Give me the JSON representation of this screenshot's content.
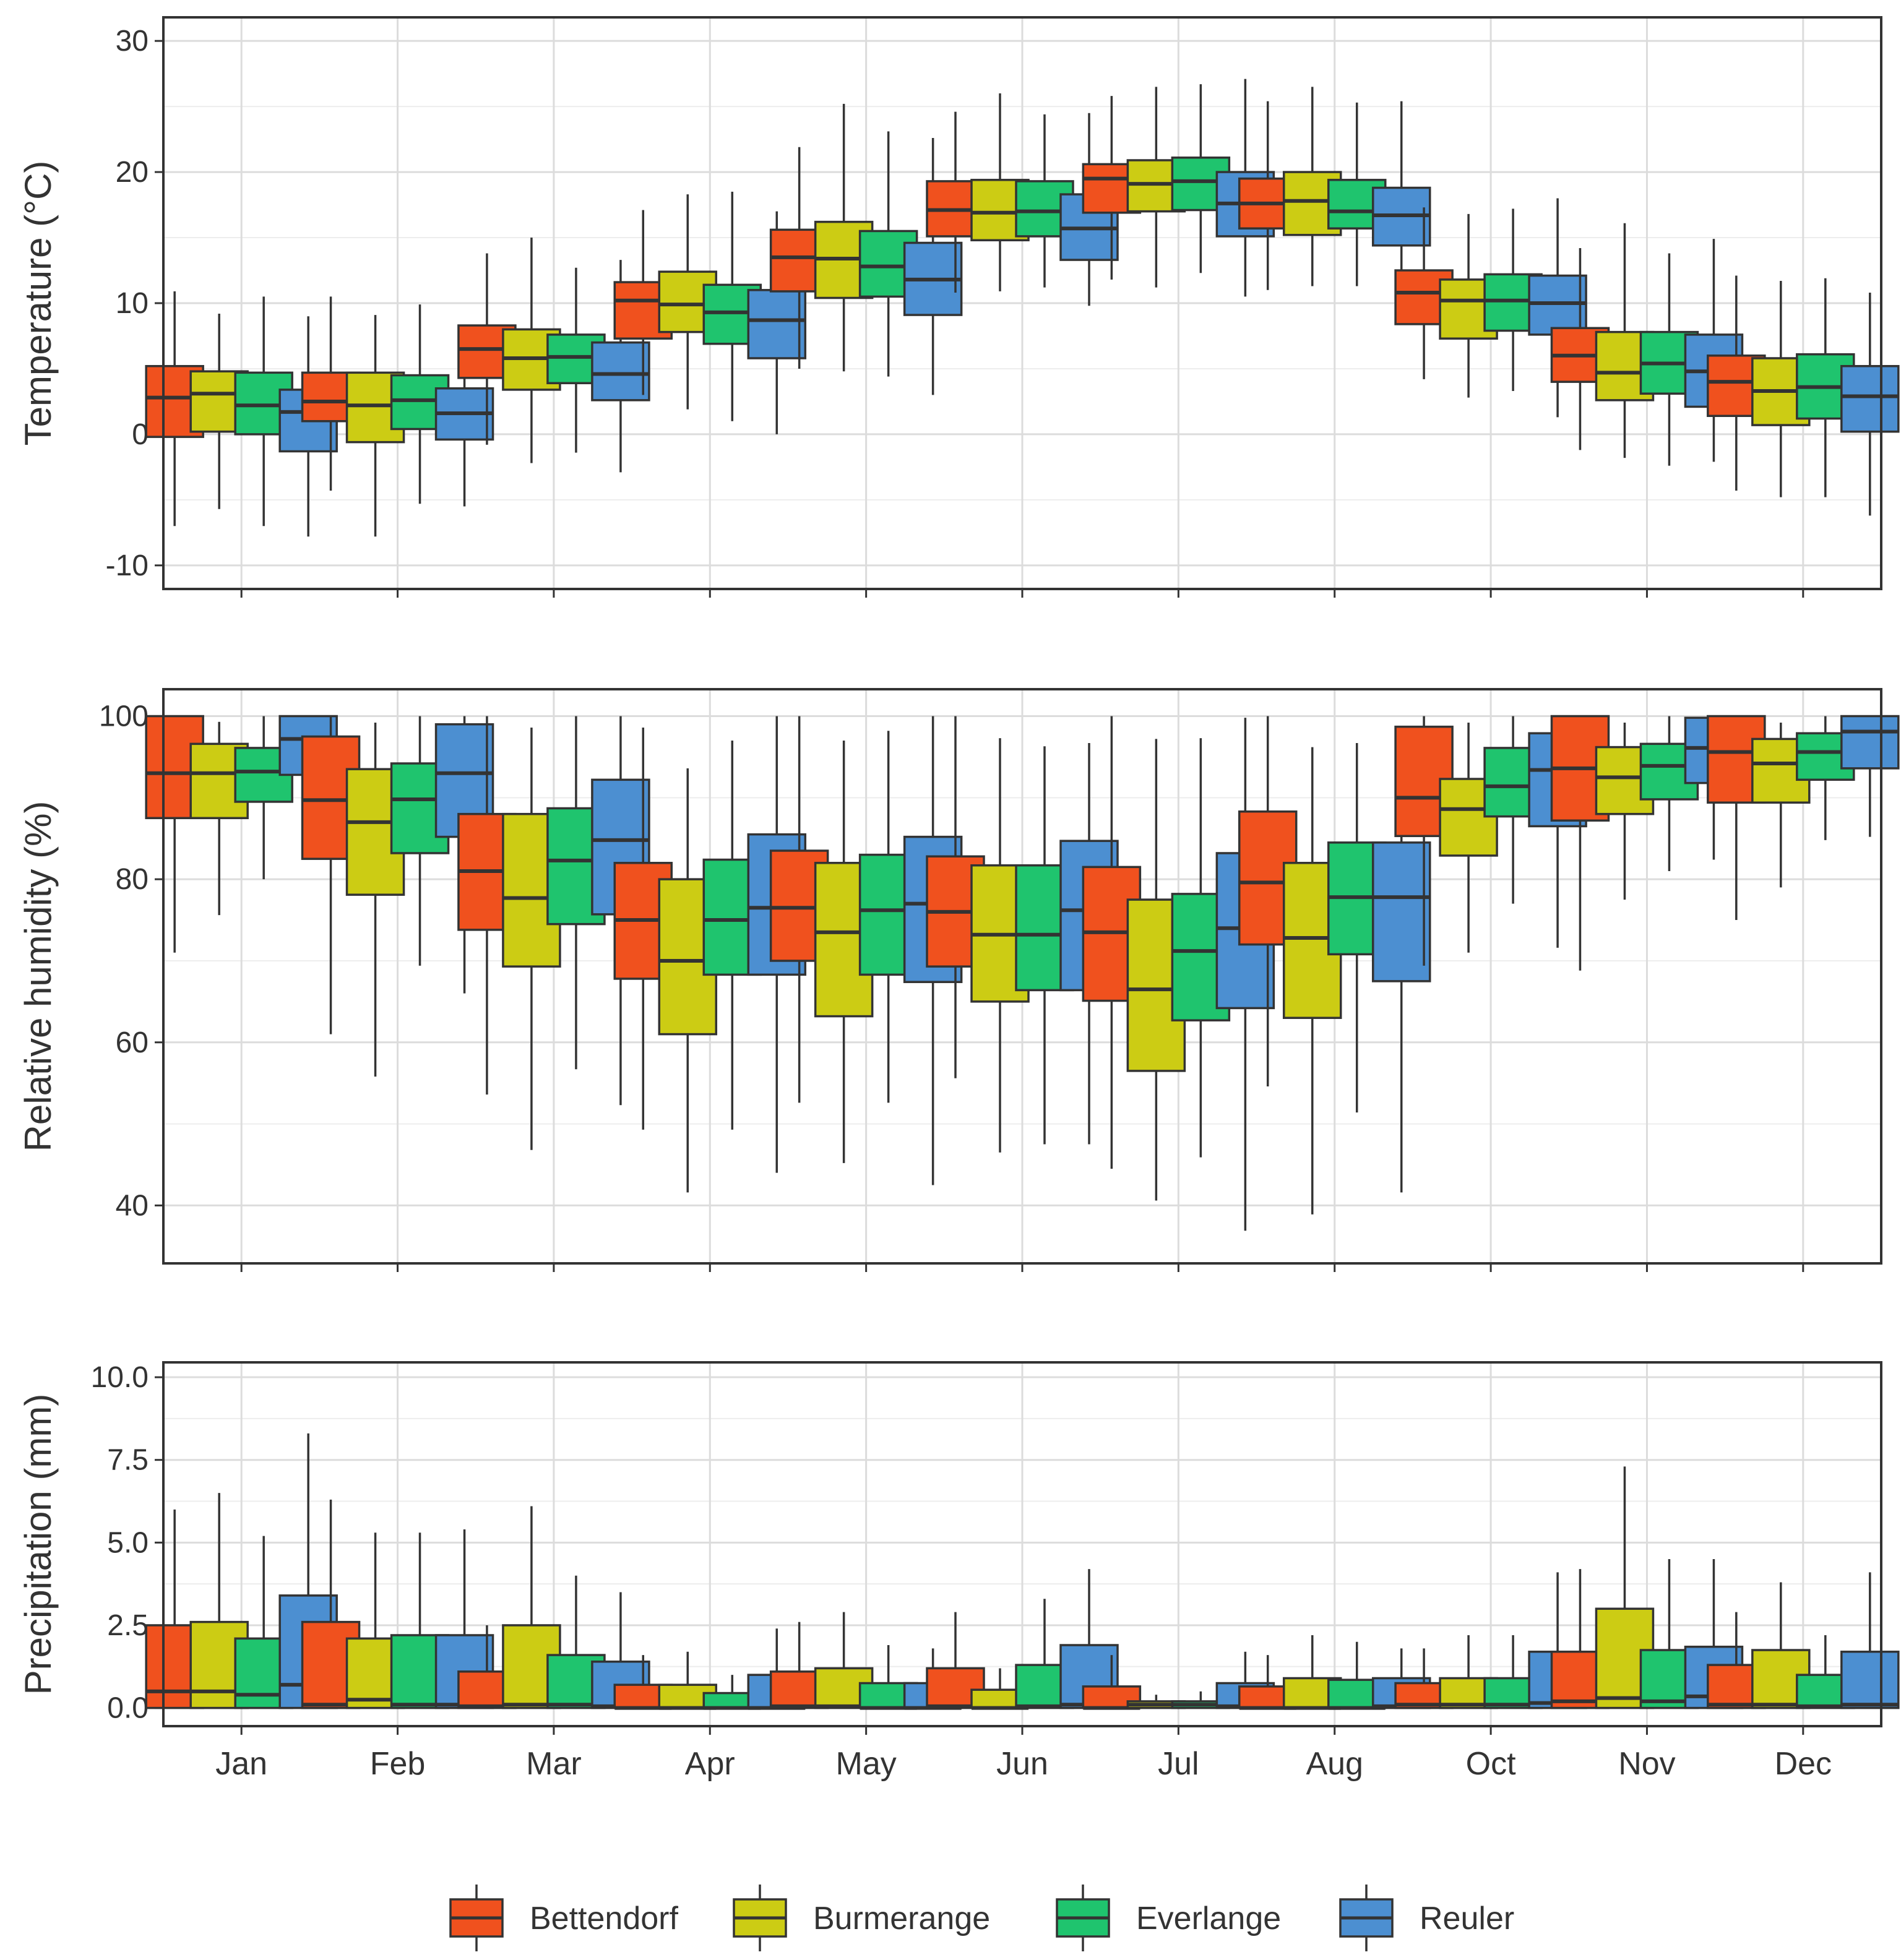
{
  "chart_data": {
    "type": "boxplot",
    "categories": [
      "Jan",
      "Feb",
      "Mar",
      "Apr",
      "May",
      "Jun",
      "Jul",
      "Aug",
      "Oct",
      "Nov",
      "Dec"
    ],
    "series": [
      {
        "name": "Bettendorf",
        "color": "#F0511E"
      },
      {
        "name": "Burmerange",
        "color": "#CCCC14"
      },
      {
        "name": "Everlange",
        "color": "#1FC46E"
      },
      {
        "name": "Reuler",
        "color": "#4C8FD1"
      }
    ],
    "legend_position": "bottom",
    "grid": true,
    "panels": [
      {
        "ylabel": "Temperature (°C)",
        "ylim": [
          -11.8,
          31.8
        ],
        "yticks": [
          -10,
          0,
          10,
          20,
          30
        ],
        "tick_labels": [
          "-10",
          "0",
          "10",
          "20",
          "30"
        ],
        "boxes": [
          [
            [
              -7,
              -0.2,
              2.8,
              5.2,
              10.9
            ],
            [
              -5.7,
              0.2,
              3.1,
              4.8,
              9.2
            ],
            [
              -7,
              0,
              2.2,
              4.7,
              10.5
            ],
            [
              -7.8,
              -1.3,
              1.7,
              3.4,
              9
            ]
          ],
          [
            [
              -4.3,
              1,
              2.5,
              4.7,
              10.5
            ],
            [
              -7.8,
              -0.6,
              2.2,
              4.7,
              9.1
            ],
            [
              -5.3,
              0.4,
              2.6,
              4.5,
              9.9
            ],
            [
              -5.5,
              -0.4,
              1.6,
              3.5,
              8.3
            ]
          ],
          [
            [
              -0.8,
              4.3,
              6.5,
              8.3,
              13.8
            ],
            [
              -2.2,
              3.4,
              5.8,
              8,
              15
            ],
            [
              -1.4,
              3.9,
              5.9,
              7.6,
              12.7
            ],
            [
              -2.9,
              2.6,
              4.6,
              7,
              13.3
            ]
          ],
          [
            [
              3,
              7.3,
              10.2,
              11.6,
              17.1
            ],
            [
              1.9,
              7.8,
              9.9,
              12.4,
              18.3
            ],
            [
              1,
              6.9,
              9.3,
              11.4,
              18.5
            ],
            [
              0,
              5.8,
              8.7,
              11,
              17
            ]
          ],
          [
            [
              5,
              10.9,
              13.5,
              15.6,
              21.9
            ],
            [
              4.8,
              10.4,
              13.4,
              16.2,
              25.2
            ],
            [
              4.4,
              10.5,
              12.8,
              15.5,
              23.1
            ],
            [
              3,
              9.1,
              11.8,
              14.6,
              22.6
            ]
          ],
          [
            [
              10.8,
              15.1,
              17.1,
              19.3,
              24.6
            ],
            [
              10.9,
              14.8,
              16.9,
              19.4,
              26
            ],
            [
              11.2,
              15.1,
              17,
              19.3,
              24.4
            ],
            [
              9.8,
              13.3,
              15.7,
              18.3,
              24.5
            ]
          ],
          [
            [
              11.8,
              16.9,
              19.5,
              20.6,
              25.8
            ],
            [
              11.2,
              17,
              19.1,
              20.9,
              26.5
            ],
            [
              12.3,
              17.1,
              19.3,
              21.1,
              26.7
            ],
            [
              10.5,
              15.1,
              17.6,
              20,
              27.1
            ]
          ],
          [
            [
              11,
              15.7,
              17.6,
              19.5,
              25.4
            ],
            [
              11.3,
              15.2,
              17.8,
              20,
              26.5
            ],
            [
              11.3,
              15.7,
              17,
              19.4,
              25.3
            ],
            [
              10,
              14.4,
              16.7,
              18.8,
              25.4
            ]
          ],
          [
            [
              4.2,
              8.4,
              10.8,
              12.5,
              17.3
            ],
            [
              2.8,
              7.3,
              10.2,
              11.8,
              16.8
            ],
            [
              3.3,
              7.9,
              10.2,
              12.2,
              17.2
            ],
            [
              1.3,
              7.6,
              10,
              12.1,
              18
            ]
          ],
          [
            [
              -1.2,
              4,
              6,
              8.1,
              14.2
            ],
            [
              -1.8,
              2.6,
              4.7,
              7.8,
              16.1
            ],
            [
              -2.4,
              3.1,
              5.4,
              7.8,
              13.8
            ],
            [
              -2.1,
              2.1,
              4.8,
              7.6,
              14.9
            ]
          ],
          [
            [
              -4.3,
              1.4,
              4,
              6,
              12.1
            ],
            [
              -4.8,
              0.7,
              3.3,
              5.8,
              11.7
            ],
            [
              -4.8,
              1.2,
              3.6,
              6.1,
              11.9
            ],
            [
              -6.2,
              0.2,
              2.9,
              5.2,
              10.8
            ]
          ]
        ]
      },
      {
        "ylabel": "Relative humidity (%)",
        "ylim": [
          32.9,
          103.3
        ],
        "yticks": [
          40,
          60,
          80,
          100
        ],
        "tick_labels": [
          "40",
          "60",
          "80",
          "100"
        ],
        "boxes": [
          [
            [
              71,
              87.5,
              93,
              100,
              100
            ],
            [
              75.6,
              87.5,
              93,
              96.6,
              99.3
            ],
            [
              80,
              89.5,
              93.2,
              96.1,
              100
            ],
            [
              83.5,
              92.8,
              97.2,
              100,
              100
            ]
          ],
          [
            [
              61,
              82.5,
              89.7,
              97.5,
              100
            ],
            [
              55.8,
              78.1,
              87,
              93.5,
              99.2
            ],
            [
              69.4,
              83.2,
              89.8,
              94.2,
              100
            ],
            [
              66,
              85.2,
              93,
              99,
              100
            ]
          ],
          [
            [
              53.6,
              73.8,
              81,
              88,
              100
            ],
            [
              46.8,
              69.3,
              77.7,
              88,
              98.6
            ],
            [
              56.7,
              74.5,
              82.3,
              88.7,
              100
            ],
            [
              52.3,
              75.7,
              84.8,
              92.2,
              100
            ]
          ],
          [
            [
              49.3,
              67.8,
              75,
              82,
              98.6
            ],
            [
              41.6,
              61,
              70,
              80,
              93.6
            ],
            [
              49.3,
              68.3,
              75,
              82.4,
              97
            ],
            [
              44,
              68.3,
              76.5,
              85.5,
              100
            ]
          ],
          [
            [
              52.6,
              70,
              76.5,
              83.5,
              100
            ],
            [
              45.2,
              63.2,
              73.5,
              82,
              97
            ],
            [
              52.6,
              68.3,
              76.2,
              83,
              98.2
            ],
            [
              42.5,
              67.4,
              77,
              85.2,
              100
            ]
          ],
          [
            [
              55.6,
              69.3,
              76,
              82.8,
              100
            ],
            [
              46.5,
              65,
              73.2,
              81.7,
              97.3
            ],
            [
              47.5,
              66.4,
              73.2,
              81.7,
              96.3
            ],
            [
              47.5,
              66.4,
              76.2,
              84.7,
              96.7
            ]
          ],
          [
            [
              44.5,
              65.1,
              73.5,
              81.5,
              100
            ],
            [
              40.6,
              56.5,
              66.5,
              77.5,
              97.2
            ],
            [
              45.9,
              62.7,
              71.2,
              78.2,
              97.3
            ],
            [
              36.9,
              64.2,
              74,
              83.2,
              99.8
            ]
          ],
          [
            [
              54.6,
              72,
              79.6,
              88.3,
              100
            ],
            [
              38.9,
              63,
              72.8,
              82,
              96.2
            ],
            [
              51.4,
              70.8,
              77.8,
              84.5,
              96.7
            ],
            [
              41.6,
              67.5,
              77.8,
              84.5,
              96.7
            ]
          ],
          [
            [
              69.4,
              85.3,
              90,
              98.7,
              100
            ],
            [
              71,
              82.9,
              88.6,
              92.3,
              99.2
            ],
            [
              77,
              87.7,
              91.4,
              96.1,
              100
            ],
            [
              71.6,
              86.5,
              93.4,
              97.9,
              100
            ]
          ],
          [
            [
              68.8,
              87.2,
              93.6,
              100,
              100
            ],
            [
              77.5,
              88,
              92.5,
              96.2,
              99.2
            ],
            [
              81,
              89.8,
              93.9,
              96.6,
              100
            ],
            [
              82.4,
              91.8,
              96.1,
              99.8,
              100
            ]
          ],
          [
            [
              75,
              89.4,
              95.6,
              100,
              100
            ],
            [
              79,
              89.4,
              94.2,
              97.2,
              99.2
            ],
            [
              84.8,
              92.2,
              95.6,
              97.9,
              100
            ],
            [
              85.2,
              93.6,
              98.1,
              100,
              100
            ]
          ]
        ]
      },
      {
        "ylabel": "Precipitation (mm)",
        "ylim": [
          -0.55,
          10.45
        ],
        "yticks": [
          0,
          2.5,
          5,
          7.5,
          10
        ],
        "tick_labels": [
          "0.0",
          "2.5",
          "5.0",
          "7.5",
          "10.0"
        ],
        "boxes": [
          [
            [
              0,
              0,
              0.5,
              2.5,
              6
            ],
            [
              0,
              0,
              0.5,
              2.6,
              6.5
            ],
            [
              0,
              0,
              0.4,
              2.1,
              5.2
            ],
            [
              0,
              0,
              0.7,
              3.4,
              8.3
            ]
          ],
          [
            [
              0,
              0,
              0.1,
              2.6,
              6.3
            ],
            [
              0,
              0,
              0.25,
              2.1,
              5.3
            ],
            [
              0,
              0,
              0.1,
              2.2,
              5.3
            ],
            [
              0,
              0,
              0.1,
              2.2,
              5.4
            ]
          ],
          [
            [
              0,
              0,
              0.05,
              1.1,
              2.5
            ],
            [
              0,
              0,
              0.1,
              2.5,
              6.1
            ],
            [
              0,
              0,
              0.1,
              1.6,
              4
            ],
            [
              0,
              0,
              0.05,
              1.4,
              3.5
            ]
          ],
          [
            [
              0,
              0,
              0,
              0.7,
              1.6
            ],
            [
              0,
              0,
              0,
              0.7,
              1.7
            ],
            [
              0,
              0,
              0,
              0.45,
              1
            ],
            [
              0,
              0,
              0,
              1,
              2.4
            ]
          ],
          [
            [
              0,
              0,
              0.05,
              1.1,
              2.6
            ],
            [
              0,
              0,
              0.05,
              1.2,
              2.9
            ],
            [
              0,
              0,
              0,
              0.75,
              1.9
            ],
            [
              0,
              0,
              0,
              0.75,
              1.8
            ]
          ],
          [
            [
              0,
              0,
              0.05,
              1.2,
              2.9
            ],
            [
              0,
              0,
              0,
              0.55,
              1.2
            ],
            [
              0,
              0,
              0.05,
              1.3,
              3.3
            ],
            [
              0,
              0,
              0.1,
              1.9,
              4.2
            ]
          ],
          [
            [
              0,
              0,
              0,
              0.65,
              1.6
            ],
            [
              0,
              0,
              0.1,
              0.2,
              0.4
            ],
            [
              0,
              0,
              0.1,
              0.2,
              0.5
            ],
            [
              0,
              0,
              0.05,
              0.75,
              1.7
            ]
          ],
          [
            [
              0,
              0,
              0,
              0.65,
              1.6
            ],
            [
              0,
              0,
              0,
              0.9,
              2.2
            ],
            [
              0,
              0,
              0,
              0.85,
              2
            ],
            [
              0,
              0,
              0.05,
              0.9,
              1.8
            ]
          ],
          [
            [
              0,
              0,
              0.1,
              0.75,
              1.8
            ],
            [
              0,
              0,
              0.1,
              0.9,
              2.2
            ],
            [
              0,
              0,
              0.1,
              0.9,
              2.2
            ],
            [
              0,
              0,
              0.15,
              1.7,
              4.1
            ]
          ],
          [
            [
              0,
              0,
              0.2,
              1.7,
              4.2
            ],
            [
              0,
              0,
              0.3,
              3,
              7.3
            ],
            [
              0,
              0,
              0.2,
              1.75,
              4.5
            ],
            [
              0,
              0,
              0.35,
              1.85,
              4.5
            ]
          ],
          [
            [
              0,
              0,
              0.1,
              1.3,
              2.9
            ],
            [
              0,
              0,
              0.1,
              1.75,
              3.8
            ],
            [
              0,
              0,
              0.05,
              1,
              2.2
            ],
            [
              0,
              0,
              0.1,
              1.7,
              4.1
            ]
          ]
        ]
      }
    ]
  }
}
